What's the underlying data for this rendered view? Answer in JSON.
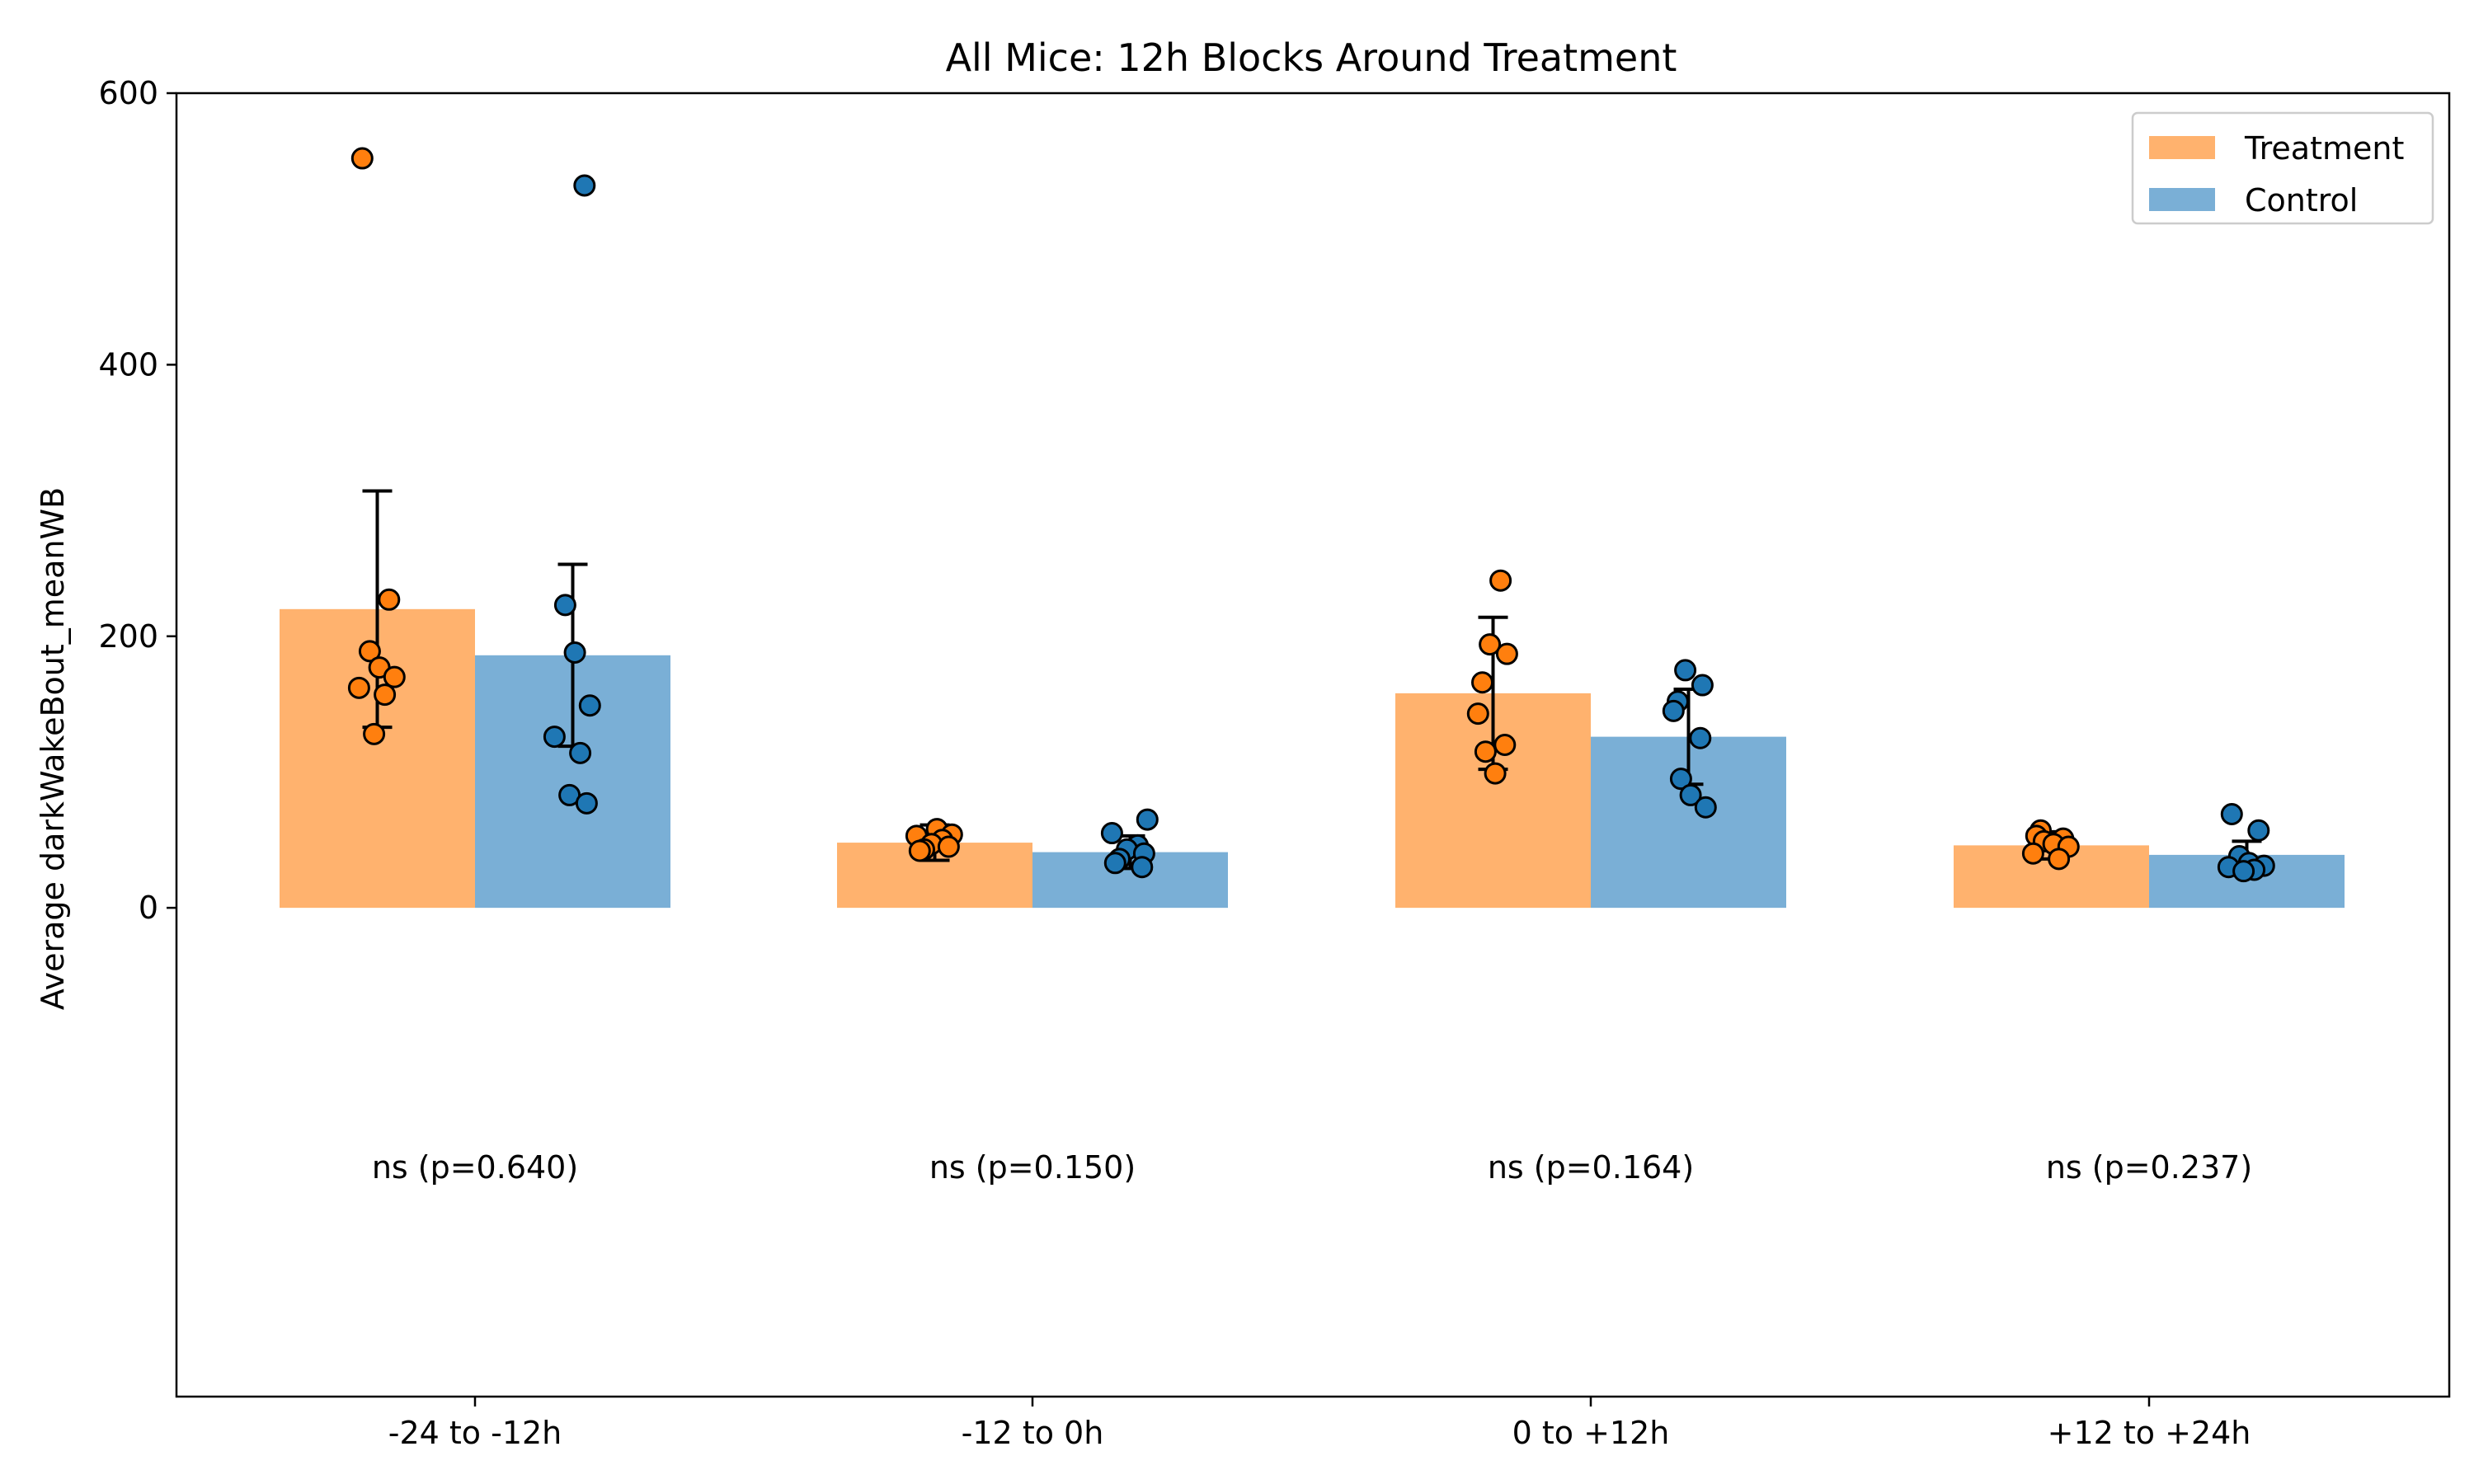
{
  "chart_data": {
    "type": "bar",
    "title": "All Mice: 12h Blocks Around Treatment",
    "xlabel": "",
    "ylabel": "Average darkWakeBout_meanWB",
    "ylim": [
      -360,
      600
    ],
    "yticks": [
      0,
      200,
      400,
      600
    ],
    "categories": [
      "-24 to -12h",
      "-12 to 0h",
      "0 to +12h",
      "+12 to +24h"
    ],
    "legend_position": "top-right",
    "grid": false,
    "series": [
      {
        "name": "Treatment",
        "bar_color": "#ffb26e",
        "point_color": "#ff7f0e",
        "values": [
          220,
          48,
          158,
          46
        ],
        "error": [
          87,
          13,
          56,
          10
        ],
        "points": [
          [
            552,
            227,
            189,
            177,
            170,
            162,
            157,
            128
          ],
          [
            58,
            54,
            53,
            50,
            47,
            45,
            43,
            42
          ],
          [
            241,
            194,
            187,
            166,
            143,
            120,
            115,
            99
          ],
          [
            57,
            53,
            51,
            49,
            47,
            45,
            40,
            36
          ]
        ]
      },
      {
        "name": "Control",
        "bar_color": "#7aafd6",
        "point_color": "#1f77b4",
        "values": [
          186,
          41,
          126,
          39
        ],
        "error": [
          67,
          12,
          35,
          10
        ],
        "points": [
          [
            532,
            223,
            188,
            149,
            126,
            114,
            83,
            77
          ],
          [
            65,
            55,
            46,
            43,
            40,
            36,
            33,
            30
          ],
          [
            175,
            164,
            152,
            145,
            125,
            95,
            83,
            74
          ],
          [
            69,
            57,
            38,
            33,
            31,
            30,
            28,
            27
          ]
        ]
      }
    ],
    "annotations": [
      "ns (p=0.640)",
      "ns (p=0.150)",
      "ns (p=0.164)",
      "ns (p=0.237)"
    ]
  }
}
